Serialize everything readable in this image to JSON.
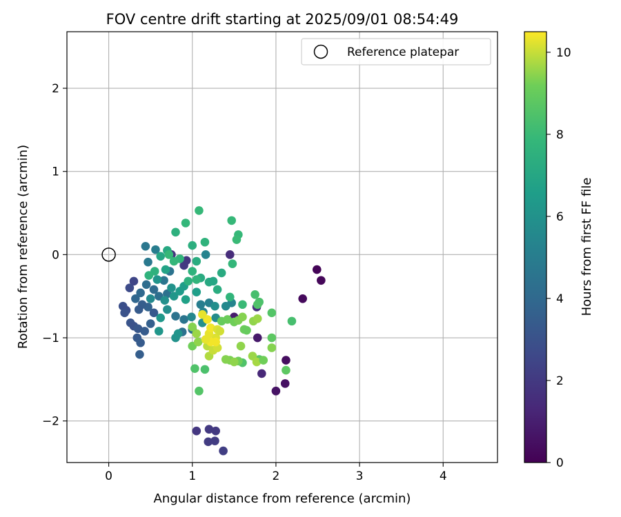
{
  "chart_data": {
    "type": "scatter",
    "title": "FOV centre drift starting at 2025/09/01 08:54:49",
    "xlabel": "Angular distance from reference (arcmin)",
    "ylabel": "Rotation from reference (arcmin)",
    "xlim": [
      -0.5,
      4.65
    ],
    "ylim": [
      -2.5,
      2.68
    ],
    "x_ticks": [
      0,
      1,
      2,
      3,
      4
    ],
    "y_ticks": [
      -2,
      -1,
      0,
      1,
      2
    ],
    "x_tick_labels": [
      "0",
      "1",
      "2",
      "3",
      "4"
    ],
    "y_tick_labels": [
      "−2",
      "−1",
      "0",
      "1",
      "2"
    ],
    "grid": true,
    "legend": {
      "position": "top-right",
      "label": "Reference platepar"
    },
    "reference_point": {
      "x": 0,
      "y": 0
    },
    "colorbar": {
      "label": "Hours from first FF file",
      "range": [
        0,
        10.5
      ],
      "ticks": [
        0,
        2,
        4,
        6,
        8,
        10
      ],
      "tick_labels": [
        "0",
        "2",
        "4",
        "6",
        "8",
        "10"
      ],
      "colormap": "viridis"
    },
    "points": [
      [
        2.49,
        -0.18,
        0.1
      ],
      [
        2.54,
        -0.31,
        0.2
      ],
      [
        2.32,
        -0.53,
        0.3
      ],
      [
        2.12,
        -1.27,
        0.4
      ],
      [
        2.11,
        -1.55,
        0.5
      ],
      [
        2.0,
        -1.64,
        0.6
      ],
      [
        1.78,
        -1.0,
        0.8
      ],
      [
        1.5,
        -0.75,
        0.9
      ],
      [
        1.45,
        0.0,
        1.5
      ],
      [
        1.83,
        -1.43,
        1.3
      ],
      [
        1.77,
        -0.63,
        1.6
      ],
      [
        1.05,
        -2.12,
        1.9
      ],
      [
        1.2,
        -2.1,
        2.0
      ],
      [
        1.28,
        -2.12,
        2.0
      ],
      [
        1.27,
        -2.24,
        2.1
      ],
      [
        1.19,
        -2.25,
        2.1
      ],
      [
        1.37,
        -2.36,
        2.2
      ],
      [
        0.75,
        0.0,
        1.8
      ],
      [
        0.93,
        -0.07,
        1.9
      ],
      [
        0.9,
        -0.13,
        2.0
      ],
      [
        0.3,
        -0.32,
        2.5
      ],
      [
        0.25,
        -0.4,
        2.7
      ],
      [
        0.17,
        -0.62,
        2.9
      ],
      [
        0.21,
        -0.67,
        2.8
      ],
      [
        0.19,
        -0.7,
        3.0
      ],
      [
        0.26,
        -0.82,
        3.1
      ],
      [
        0.3,
        -0.86,
        3.0
      ],
      [
        0.35,
        -0.89,
        3.2
      ],
      [
        0.34,
        -1.0,
        3.3
      ],
      [
        0.38,
        -1.06,
        3.4
      ],
      [
        0.37,
        -1.2,
        3.5
      ],
      [
        0.43,
        -0.92,
        3.4
      ],
      [
        0.5,
        -0.83,
        3.6
      ],
      [
        0.54,
        -0.7,
        3.3
      ],
      [
        0.47,
        -0.63,
        3.7
      ],
      [
        0.4,
        -0.6,
        3.5
      ],
      [
        0.36,
        -0.66,
        3.4
      ],
      [
        0.32,
        -0.53,
        3.9
      ],
      [
        0.38,
        -0.46,
        4.0
      ],
      [
        0.45,
        -0.36,
        4.2
      ],
      [
        0.6,
        -0.5,
        4.3
      ],
      [
        0.7,
        -0.47,
        4.4
      ],
      [
        0.66,
        -0.31,
        4.6
      ],
      [
        0.73,
        -0.2,
        4.5
      ],
      [
        0.44,
        0.1,
        4.7
      ],
      [
        0.47,
        -0.09,
        4.8
      ],
      [
        0.56,
        0.06,
        5.0
      ],
      [
        0.54,
        -0.42,
        4.1
      ],
      [
        0.8,
        -0.74,
        4.5
      ],
      [
        0.9,
        -0.78,
        4.6
      ],
      [
        0.88,
        -0.93,
        4.4
      ],
      [
        1.0,
        -0.9,
        4.3
      ],
      [
        1.1,
        -0.6,
        5.0
      ],
      [
        1.2,
        -0.58,
        5.1
      ],
      [
        1.13,
        -0.69,
        5.2
      ],
      [
        1.16,
        0.0,
        5.3
      ],
      [
        1.47,
        -0.58,
        5.4
      ],
      [
        1.4,
        -0.62,
        5.6
      ],
      [
        1.28,
        -0.76,
        5.7
      ],
      [
        1.27,
        -0.62,
        5.8
      ],
      [
        1.12,
        -0.82,
        5.9
      ],
      [
        0.99,
        -0.75,
        5.5
      ],
      [
        0.8,
        -1.0,
        6.0
      ],
      [
        0.83,
        -0.95,
        6.1
      ],
      [
        0.6,
        -0.92,
        6.2
      ],
      [
        0.62,
        -0.76,
        6.3
      ],
      [
        0.7,
        -0.66,
        5.8
      ],
      [
        0.67,
        -0.55,
        5.9
      ],
      [
        0.78,
        -0.5,
        6.2
      ],
      [
        0.85,
        -0.44,
        6.4
      ],
      [
        0.9,
        -0.38,
        6.5
      ],
      [
        1.05,
        -0.45,
        6.6
      ],
      [
        0.92,
        -0.54,
        6.7
      ],
      [
        0.75,
        -0.4,
        6.0
      ],
      [
        0.58,
        -0.3,
        6.1
      ],
      [
        0.5,
        -0.53,
        5.6
      ],
      [
        0.68,
        -0.18,
        6.8
      ],
      [
        0.62,
        -0.02,
        7.0
      ],
      [
        0.7,
        0.05,
        7.1
      ],
      [
        0.8,
        0.27,
        7.5
      ],
      [
        0.92,
        0.38,
        7.8
      ],
      [
        1.08,
        0.53,
        7.9
      ],
      [
        1.15,
        0.15,
        7.6
      ],
      [
        1.0,
        0.11,
        7.4
      ],
      [
        1.05,
        -0.08,
        7.3
      ],
      [
        1.1,
        -0.28,
        7.2
      ],
      [
        1.2,
        -0.33,
        7.1
      ],
      [
        1.25,
        -0.32,
        7.0
      ],
      [
        1.3,
        -0.42,
        7.3
      ],
      [
        1.35,
        -0.22,
        7.2
      ],
      [
        1.47,
        0.41,
        7.9
      ],
      [
        1.55,
        0.24,
        7.9
      ],
      [
        1.53,
        0.18,
        8.0
      ],
      [
        1.48,
        -0.11,
        7.8
      ],
      [
        1.45,
        -0.51,
        7.7
      ],
      [
        1.6,
        -0.6,
        8.0
      ],
      [
        1.75,
        -0.48,
        8.3
      ],
      [
        1.8,
        -0.57,
        8.4
      ],
      [
        1.78,
        -0.6,
        8.5
      ],
      [
        2.19,
        -0.8,
        8.3
      ],
      [
        1.95,
        -0.7,
        8.6
      ],
      [
        1.6,
        -1.3,
        8.5
      ],
      [
        1.8,
        -1.26,
        8.7
      ],
      [
        1.95,
        -1.0,
        8.8
      ],
      [
        2.12,
        -1.39,
        8.8
      ],
      [
        1.08,
        -1.64,
        8.6
      ],
      [
        1.15,
        -1.38,
        8.4
      ],
      [
        1.03,
        -1.37,
        8.5
      ],
      [
        0.95,
        -0.32,
        7.5
      ],
      [
        1.0,
        -0.2,
        7.6
      ],
      [
        1.05,
        -0.3,
        7.7
      ],
      [
        0.85,
        -0.05,
        7.7
      ],
      [
        0.78,
        -0.08,
        7.8
      ],
      [
        0.72,
        0.0,
        7.9
      ],
      [
        0.55,
        -0.2,
        7.5
      ],
      [
        0.48,
        -0.25,
        7.6
      ],
      [
        1.35,
        -0.8,
        9.0
      ],
      [
        1.42,
        -0.78,
        9.1
      ],
      [
        1.5,
        -0.81,
        9.2
      ],
      [
        1.55,
        -0.79,
        9.3
      ],
      [
        1.6,
        -0.75,
        9.4
      ],
      [
        1.73,
        -0.8,
        9.5
      ],
      [
        1.78,
        -0.77,
        9.6
      ],
      [
        1.62,
        -0.9,
        9.1
      ],
      [
        1.65,
        -0.91,
        9.0
      ],
      [
        1.55,
        -1.28,
        9.2
      ],
      [
        1.45,
        -1.27,
        9.3
      ],
      [
        1.4,
        -1.26,
        9.4
      ],
      [
        1.5,
        -1.29,
        9.5
      ],
      [
        1.72,
        -1.22,
        9.6
      ],
      [
        1.77,
        -1.29,
        9.7
      ],
      [
        1.85,
        -1.27,
        9.2
      ],
      [
        1.95,
        -1.12,
        9.4
      ],
      [
        1.58,
        -1.1,
        9.5
      ],
      [
        1.2,
        -1.22,
        9.8
      ],
      [
        1.18,
        -1.1,
        9.9
      ],
      [
        1.25,
        -1.15,
        10.0
      ],
      [
        1.3,
        -1.12,
        10.1
      ],
      [
        1.28,
        -1.0,
        10.2
      ],
      [
        1.2,
        -0.95,
        10.3
      ],
      [
        1.22,
        -0.88,
        10.4
      ],
      [
        1.18,
        -0.78,
        10.4
      ],
      [
        1.12,
        -0.72,
        10.3
      ],
      [
        1.3,
        -0.9,
        10.2
      ],
      [
        1.33,
        -0.92,
        10.1
      ],
      [
        1.0,
        -1.1,
        9.2
      ],
      [
        1.07,
        -1.05,
        9.5
      ],
      [
        1.05,
        -0.95,
        9.6
      ],
      [
        1.0,
        -0.87,
        9.4
      ],
      [
        1.28,
        -1.05,
        10.4
      ],
      [
        1.22,
        -1.05,
        10.4
      ],
      [
        1.16,
        -1.02,
        10.3
      ]
    ]
  }
}
